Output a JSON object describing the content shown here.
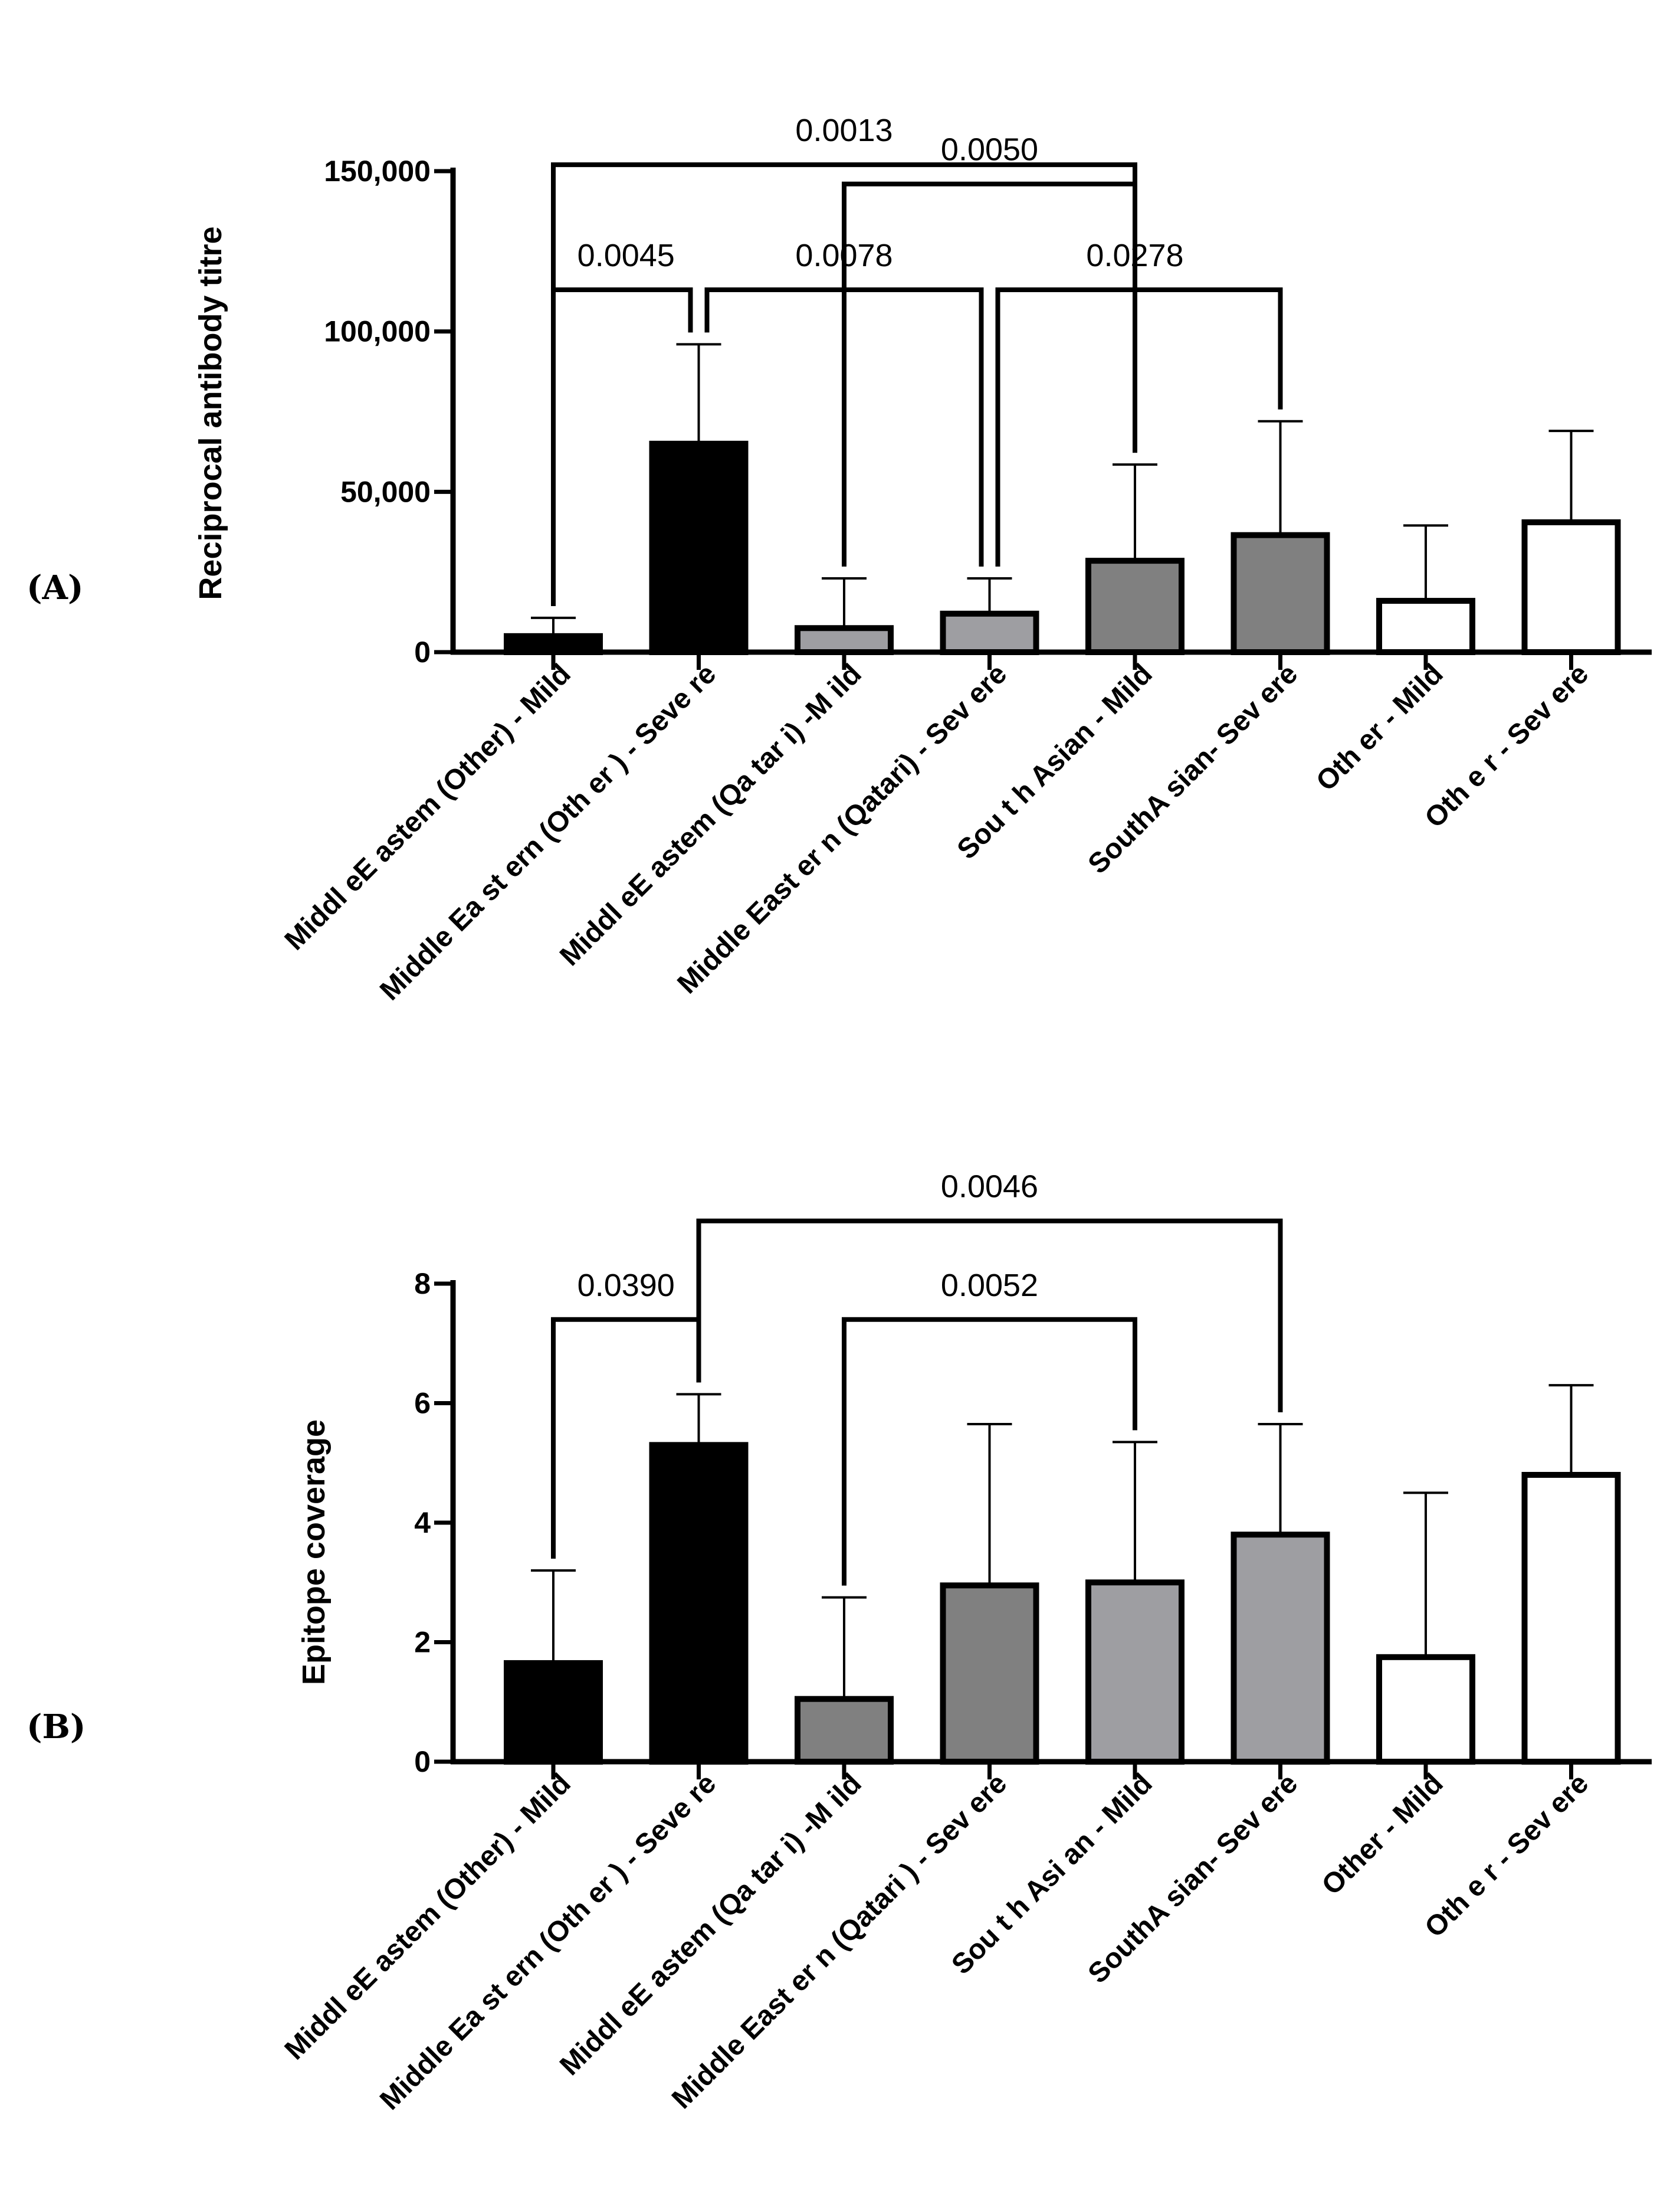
{
  "chart_data": [
    {
      "panel": "(A)",
      "type": "bar",
      "ylabel": "Reciprocal antibody titre",
      "ylim": [
        0,
        150000
      ],
      "yticks": [
        0,
        50000,
        100000,
        150000
      ],
      "ytick_labels": [
        "0",
        "50,000",
        "100,000",
        "150,000"
      ],
      "categories": [
        "Middl eE astem (Other) - Mild",
        "Middle Ea st ern (Oth er ) - Seve re",
        "Middl eE astem (Qa tar i) -M ild",
        "Middle East er n (Qatari) - Sev ere",
        "Sou t h Asian - Mild",
        "SouthA sian- Sev ere",
        "Oth er - Mild",
        "Oth e r - Sev ere"
      ],
      "values": [
        5000,
        65000,
        7500,
        12000,
        28500,
        36500,
        16000,
        40500
      ],
      "error_upper": [
        10700,
        96000,
        23000,
        23000,
        58500,
        72000,
        39500,
        69000
      ],
      "fill_colors": [
        "#000000",
        "#000000",
        "#9e9ea2",
        "#9e9ea2",
        "#808080",
        "#808080",
        "#ffffff",
        "#ffffff"
      ],
      "comparisons": [
        {
          "from": 0,
          "to": 4,
          "p": "0.0013",
          "level": 152000
        },
        {
          "from": 2,
          "to": 4,
          "p": "0.0050",
          "level": 146000
        },
        {
          "from": 0,
          "to": 1,
          "p": "0.0045",
          "level": 113000
        },
        {
          "from": 1,
          "to": 3,
          "p": "0.0078",
          "level": 113000
        },
        {
          "from": 3,
          "to": 5,
          "p": "0.0278",
          "level": 113000
        }
      ]
    },
    {
      "panel": "(B)",
      "type": "bar",
      "ylabel": "Epitope coverage",
      "ylim": [
        0,
        8
      ],
      "yticks": [
        0,
        2,
        4,
        6,
        8
      ],
      "ytick_labels": [
        "0",
        "2",
        "4",
        "6",
        "8"
      ],
      "categories": [
        "Middl eE astem (Other) - Mild",
        "Middle Ea st ern (Oth er ) - Seve re",
        "Middl eE astem (Qa tar i) -M ild",
        "Middle East er n (Qatari ) - Sev ere",
        "Sou t h Asi an - Mild",
        "SouthA sian- Sev ere",
        "Other - Mild",
        "Oth e r - Sev ere"
      ],
      "values": [
        1.65,
        5.3,
        1.05,
        2.95,
        3.0,
        3.8,
        1.75,
        4.8
      ],
      "error_upper": [
        3.2,
        6.15,
        2.75,
        5.65,
        5.35,
        5.65,
        4.5,
        6.3
      ],
      "fill_colors": [
        "#000000",
        "#000000",
        "#808080",
        "#808080",
        "#9e9ea2",
        "#9e9ea2",
        "#ffffff",
        "#ffffff"
      ],
      "comparisons": [
        {
          "from": 1,
          "to": 5,
          "p": "0.0046",
          "level": 9.05
        },
        {
          "from": 0,
          "to": 1,
          "p": "0.0390",
          "level": 7.4
        },
        {
          "from": 2,
          "to": 4,
          "p": "0.0052",
          "level": 7.4
        }
      ]
    }
  ]
}
